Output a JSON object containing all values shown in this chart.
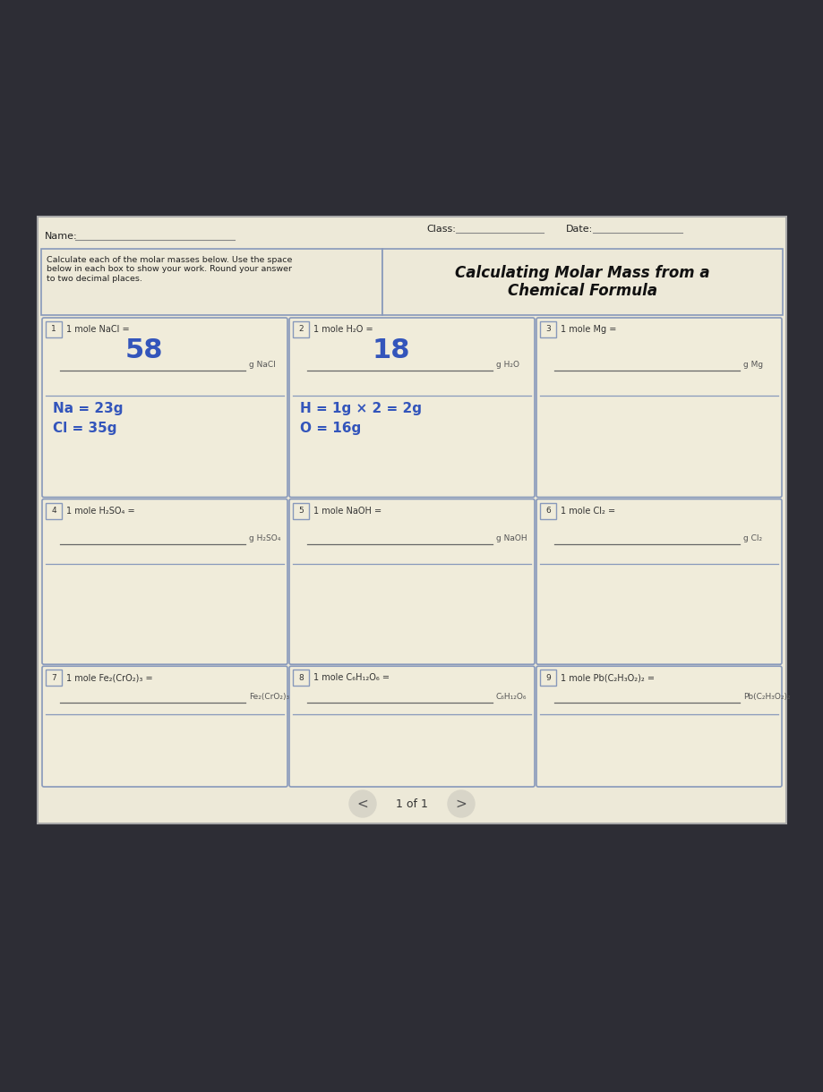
{
  "bg_outer": "#2d2d35",
  "bg_page": "#ede9d8",
  "border_color": "#8899bb",
  "text_blue": "#3355bb",
  "text_dark": "#222222",
  "line_color": "#999999",
  "name_label": "Name:",
  "class_label": "Class:",
  "date_label": "Date:",
  "instructions": "Calculate each of the molar masses below. Use the space\nbelow in each box to show your work. Round your answer\nto two decimal places.",
  "worksheet_title": "Calculating Molar Mass from a\nChemical Formula",
  "cells": [
    {
      "num": "1",
      "problem": "1 mole NaCl =",
      "answer_value": "58",
      "answer_unit": "g NaCl",
      "work_lines": [
        "Na = 23g",
        "Cl = 35g"
      ],
      "filled": true
    },
    {
      "num": "2",
      "problem": "1 mole H₂O =",
      "answer_value": "18",
      "answer_unit": "g H₂O",
      "work_lines": [
        "H = 1g × 2 = 2g",
        "O = 16g"
      ],
      "filled": true
    },
    {
      "num": "3",
      "problem": "1 mole Mg =",
      "answer_value": "",
      "answer_unit": "g Mg",
      "work_lines": [],
      "filled": false
    },
    {
      "num": "4",
      "problem": "1 mole H₂SO₄ =",
      "answer_value": "",
      "answer_unit": "g H₂SO₄",
      "work_lines": [],
      "filled": false
    },
    {
      "num": "5",
      "problem": "1 mole NaOH =",
      "answer_value": "",
      "answer_unit": "g NaOH",
      "work_lines": [],
      "filled": false
    },
    {
      "num": "6",
      "problem": "1 mole Cl₂ =",
      "answer_value": "",
      "answer_unit": "g Cl₂",
      "work_lines": [],
      "filled": false
    },
    {
      "num": "7",
      "problem": "1 mole Fe₂(CrO₂)₃ =",
      "answer_value": "",
      "answer_unit": "Fe₂(CrO₂)₃",
      "work_lines": [],
      "filled": false
    },
    {
      "num": "8",
      "problem": "1 mole C₆H₁₂O₆ =",
      "answer_value": "",
      "answer_unit": "C₆H₁₂O₆",
      "work_lines": [],
      "filled": false
    },
    {
      "num": "9",
      "problem": "1 mole Pb(C₂H₃O₂)₂ =",
      "answer_value": "",
      "answer_unit": "Pb(C₂H₃O₂)₂",
      "work_lines": [],
      "filled": false
    }
  ],
  "pagination": "1 of 1"
}
